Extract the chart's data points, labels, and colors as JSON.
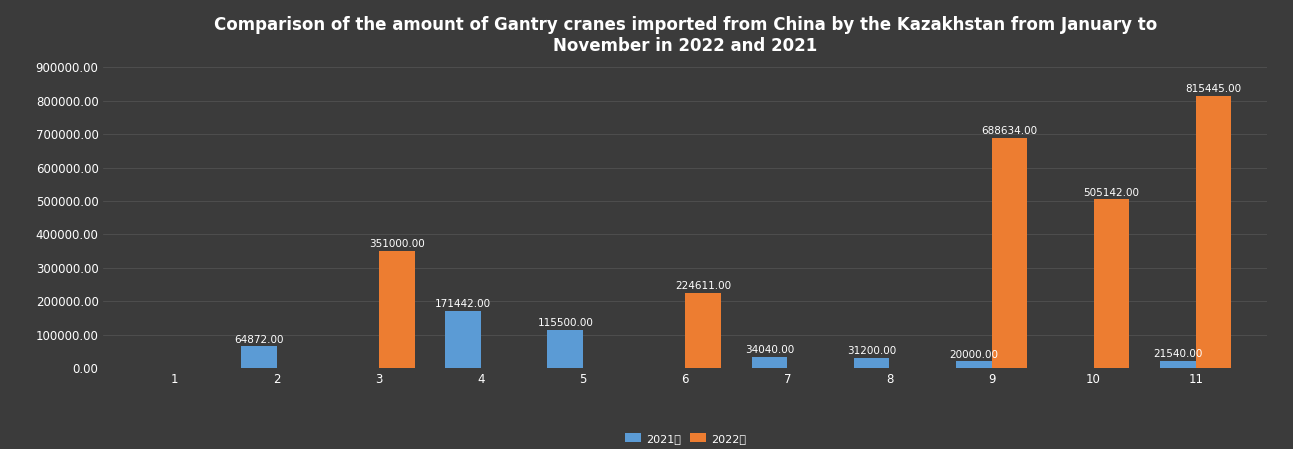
{
  "title": "Comparison of the amount of Gantry cranes imported from China by the Kazakhstan from January to\nNovember in 2022 and 2021",
  "months": [
    1,
    2,
    3,
    4,
    5,
    6,
    7,
    8,
    9,
    10,
    11
  ],
  "values_2021": [
    0,
    64872,
    0,
    171442,
    115500,
    0,
    34040,
    31200,
    20000,
    0,
    21540
  ],
  "values_2022": [
    0,
    0,
    351000,
    0,
    0,
    224611,
    0,
    0,
    688634,
    505142,
    815445
  ],
  "color_2021": "#5B9BD5",
  "color_2022": "#ED7D31",
  "background_color": "#3B3B3B",
  "plot_bg_color": "#3B3B3B",
  "grid_color": "#555555",
  "text_color": "#FFFFFF",
  "label_2021": "2021年",
  "label_2022": "2022年",
  "ylim": [
    0,
    900000
  ],
  "ytick_step": 100000,
  "bar_width": 0.35,
  "title_fontsize": 12,
  "tick_fontsize": 8.5,
  "label_fontsize": 7.5
}
